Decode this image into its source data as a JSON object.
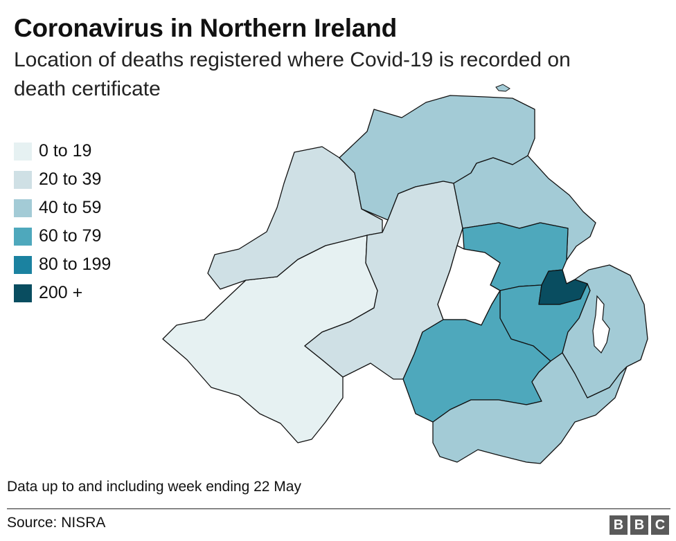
{
  "header": {
    "title": "Coronavirus in Northern Ireland",
    "subtitle": "Location of deaths registered where Covid-19 is recorded on death certificate"
  },
  "legend": {
    "items": [
      {
        "label": "0 to 19",
        "color": "#e6f1f2"
      },
      {
        "label": "20 to 39",
        "color": "#cfe0e5"
      },
      {
        "label": "40 to 59",
        "color": "#a3cbd6"
      },
      {
        "label": "60 to 79",
        "color": "#4ea8bc"
      },
      {
        "label": "80 to 199",
        "color": "#1b82a0"
      },
      {
        "label": "200 +",
        "color": "#094d60"
      }
    ]
  },
  "map": {
    "lough_color": "#ffffff",
    "regions": [
      {
        "id": "derry-strabane",
        "band": "20 to 39"
      },
      {
        "id": "causeway-coast-glens",
        "band": "40 to 59"
      },
      {
        "id": "mid-east-antrim",
        "band": "40 to 59"
      },
      {
        "id": "mid-ulster",
        "band": "20 to 39"
      },
      {
        "id": "fermanagh-omagh",
        "band": "0 to 19"
      },
      {
        "id": "antrim-newtownabbey",
        "band": "60 to 79"
      },
      {
        "id": "belfast",
        "band": "200 +"
      },
      {
        "id": "lisburn-castlereagh",
        "band": "60 to 79"
      },
      {
        "id": "armagh-banbridge-craigavon",
        "band": "60 to 79"
      },
      {
        "id": "newry-mourne-down",
        "band": "40 to 59"
      },
      {
        "id": "ards-north-down",
        "band": "40 to 59"
      }
    ]
  },
  "footer": {
    "note": "Data up to and including week ending 22 May",
    "source": "Source: NISRA",
    "logo_letters": [
      "B",
      "B",
      "C"
    ]
  }
}
